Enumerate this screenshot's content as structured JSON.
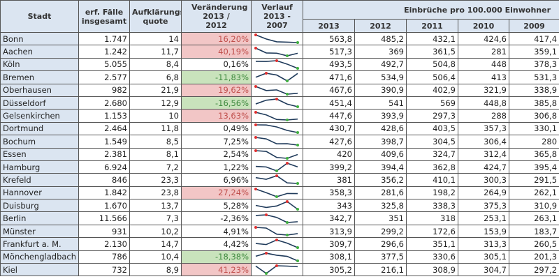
{
  "headers": {
    "city": "Stadt",
    "cases": "erf. Fälle insgesamt",
    "rate": "Aufklärungs-quote",
    "change": "Veränderung 2013 / 2012",
    "trend": "Verlauf 2013 - 2007",
    "group": "Einbrüche pro 100.000 Einwohner",
    "years": [
      "2013",
      "2012",
      "2011",
      "2010",
      "2009"
    ]
  },
  "colors": {
    "header_bg": "#dbe5f1",
    "increase_bg": "#f2c6c6",
    "decrease_bg": "#c9e3bc",
    "spark_line": "#1f3a5a",
    "spark_max": "#e03030",
    "spark_min": "#40b040"
  },
  "rows": [
    {
      "city": "Bonn",
      "cases": "1.747",
      "rate": "14",
      "change": "16,20%",
      "hl": "pos",
      "years": [
        "563,8",
        "485,2",
        "432,1",
        "424,6",
        "417,4"
      ]
    },
    {
      "city": "Aachen",
      "cases": "1.242",
      "rate": "11,7",
      "change": "40,19%",
      "hl": "pos",
      "years": [
        "517,3",
        "369",
        "361,5",
        "281",
        "359,1"
      ]
    },
    {
      "city": "Köln",
      "cases": "5.055",
      "rate": "8,4",
      "change": "0,16%",
      "hl": "",
      "years": [
        "493,5",
        "492,7",
        "504,8",
        "448",
        "378,3"
      ]
    },
    {
      "city": "Bremen",
      "cases": "2.577",
      "rate": "6,8",
      "change": "-11,83%",
      "hl": "neg",
      "years": [
        "471,6",
        "534,9",
        "506,4",
        "413",
        "531,3"
      ]
    },
    {
      "city": "Oberhausen",
      "cases": "982",
      "rate": "21,9",
      "change": "19,62%",
      "hl": "pos",
      "years": [
        "467,6",
        "390,9",
        "402,9",
        "321,9",
        "338,9"
      ]
    },
    {
      "city": "Düsseldorf",
      "cases": "2.680",
      "rate": "12,9",
      "change": "-16,56%",
      "hl": "neg",
      "years": [
        "451,4",
        "541",
        "569",
        "448,8",
        "385,8"
      ]
    },
    {
      "city": "Gelsenkirchen",
      "cases": "1.153",
      "rate": "10",
      "change": "13,63%",
      "hl": "pos",
      "years": [
        "447,6",
        "393,9",
        "297,3",
        "288",
        "306,8"
      ]
    },
    {
      "city": "Dortmund",
      "cases": "2.464",
      "rate": "11,8",
      "change": "0,49%",
      "hl": "",
      "years": [
        "430,7",
        "428,6",
        "403,5",
        "357,3",
        "330,1"
      ]
    },
    {
      "city": "Bochum",
      "cases": "1.549",
      "rate": "8,5",
      "change": "7,25%",
      "hl": "",
      "years": [
        "427,6",
        "398,7",
        "304,5",
        "306,4",
        "280"
      ]
    },
    {
      "city": "Essen",
      "cases": "2.381",
      "rate": "8,1",
      "change": "2,54%",
      "hl": "",
      "years": [
        "420",
        "409,6",
        "324,7",
        "312,4",
        "365,8"
      ]
    },
    {
      "city": "Hamburg",
      "cases": "6.924",
      "rate": "7,2",
      "change": "1,22%",
      "hl": "",
      "years": [
        "399,2",
        "394,4",
        "362,8",
        "424,7",
        "395,4"
      ]
    },
    {
      "city": "Krefeld",
      "cases": "846",
      "rate": "23,3",
      "change": "6,96%",
      "hl": "",
      "years": [
        "381",
        "356,2",
        "410,1",
        "300,3",
        "291,5"
      ]
    },
    {
      "city": "Hannover",
      "cases": "1.842",
      "rate": "23,8",
      "change": "27,24%",
      "hl": "pos",
      "years": [
        "358,3",
        "281,6",
        "198,2",
        "264,9",
        "262,1"
      ]
    },
    {
      "city": "Duisburg",
      "cases": "1.670",
      "rate": "13,7",
      "change": "5,28%",
      "hl": "",
      "years": [
        "343",
        "325,8",
        "338,3",
        "375,3",
        "310,9"
      ]
    },
    {
      "city": "Berlin",
      "cases": "11.566",
      "rate": "7,3",
      "change": "-2,36%",
      "hl": "",
      "years": [
        "342,7",
        "351",
        "318",
        "253,1",
        "263,1"
      ]
    },
    {
      "city": "Münster",
      "cases": "931",
      "rate": "10,2",
      "change": "4,91%",
      "hl": "",
      "years": [
        "313,9",
        "299,2",
        "172,6",
        "153,9",
        "183,7"
      ]
    },
    {
      "city": "Frankfurt a. M.",
      "cases": "2.130",
      "rate": "14,7",
      "change": "4,42%",
      "hl": "",
      "years": [
        "309,7",
        "296,6",
        "351,1",
        "313,3",
        "260,5"
      ]
    },
    {
      "city": "Mönchengladbach",
      "cases": "786",
      "rate": "10,4",
      "change": "-18,38%",
      "hl": "neg",
      "years": [
        "308,1",
        "377,5",
        "330,6",
        "305,1",
        "201,3"
      ]
    },
    {
      "city": "Kiel",
      "cases": "732",
      "rate": "8,9",
      "change": "41,23%",
      "hl": "pos",
      "years": [
        "305,2",
        "216,1",
        "308,9",
        "304,7",
        "297,2"
      ]
    }
  ]
}
